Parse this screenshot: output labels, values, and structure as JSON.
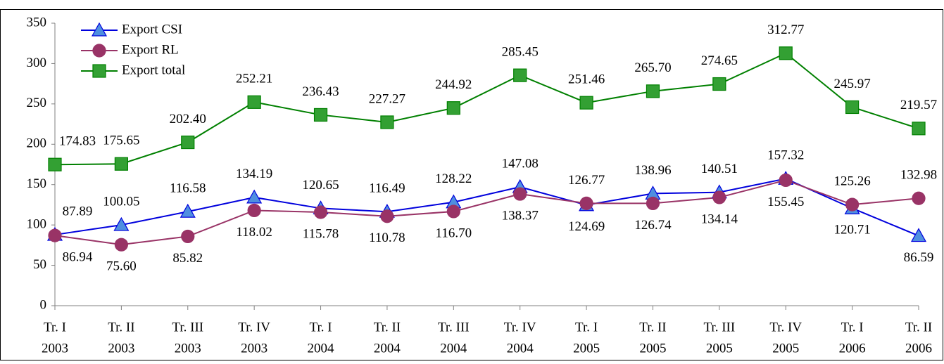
{
  "chart_data": {
    "type": "line",
    "categories": [
      [
        "Tr. I",
        "2003"
      ],
      [
        "Tr. II",
        "2003"
      ],
      [
        "Tr. III",
        "2003"
      ],
      [
        "Tr. IV",
        "2003"
      ],
      [
        "Tr. I",
        "2004"
      ],
      [
        "Tr. II",
        "2004"
      ],
      [
        "Tr. III",
        "2004"
      ],
      [
        "Tr. IV",
        "2004"
      ],
      [
        "Tr. I",
        "2005"
      ],
      [
        "Tr. II",
        "2005"
      ],
      [
        "Tr. III",
        "2005"
      ],
      [
        "Tr. IV",
        "2005"
      ],
      [
        "Tr. I",
        "2006"
      ],
      [
        "Tr. II",
        "2006"
      ]
    ],
    "series": [
      {
        "name": "Export CSI",
        "color": "#0000dd",
        "marker": "triangle",
        "marker_color": "#4f8fe0",
        "values": [
          87.89,
          100.05,
          116.58,
          134.19,
          120.65,
          116.49,
          128.22,
          147.08,
          124.69,
          138.96,
          140.51,
          157.32,
          120.71,
          86.59
        ],
        "value_labels": [
          "87.89",
          "100.05",
          "116.58",
          "134.19",
          "120.65",
          "116.49",
          "128.22",
          "147.08",
          "124.69",
          "138.96",
          "140.51",
          "157.32",
          "120.71",
          "86.59"
        ]
      },
      {
        "name": "Export RL",
        "color": "#993366",
        "marker": "circle",
        "marker_color": "#993366",
        "values": [
          86.94,
          75.6,
          85.82,
          118.02,
          115.78,
          110.78,
          116.7,
          138.37,
          126.77,
          126.74,
          134.14,
          155.45,
          125.26,
          132.98
        ],
        "value_labels": [
          "86.94",
          "75.60",
          "85.82",
          "118.02",
          "115.78",
          "110.78",
          "116.70",
          "138.37",
          "126.77",
          "126.74",
          "134.14",
          "155.45",
          "125.26",
          "132.98"
        ]
      },
      {
        "name": "Export total",
        "color": "#008000",
        "marker": "square",
        "marker_color": "#33a033",
        "values": [
          174.83,
          175.65,
          202.4,
          252.21,
          236.43,
          227.27,
          244.92,
          285.45,
          251.46,
          265.7,
          274.65,
          312.77,
          245.97,
          219.57
        ],
        "value_labels": [
          "174.83",
          "175.65",
          "202.40",
          "252.21",
          "236.43",
          "227.27",
          "244.92",
          "285.45",
          "251.46",
          "265.70",
          "274.65",
          "312.77",
          "245.97",
          "219.57"
        ]
      }
    ],
    "ylim": [
      0,
      350
    ],
    "yticks": [
      0,
      50,
      100,
      150,
      200,
      250,
      300,
      350
    ],
    "grid": false,
    "legend": "upper left"
  }
}
